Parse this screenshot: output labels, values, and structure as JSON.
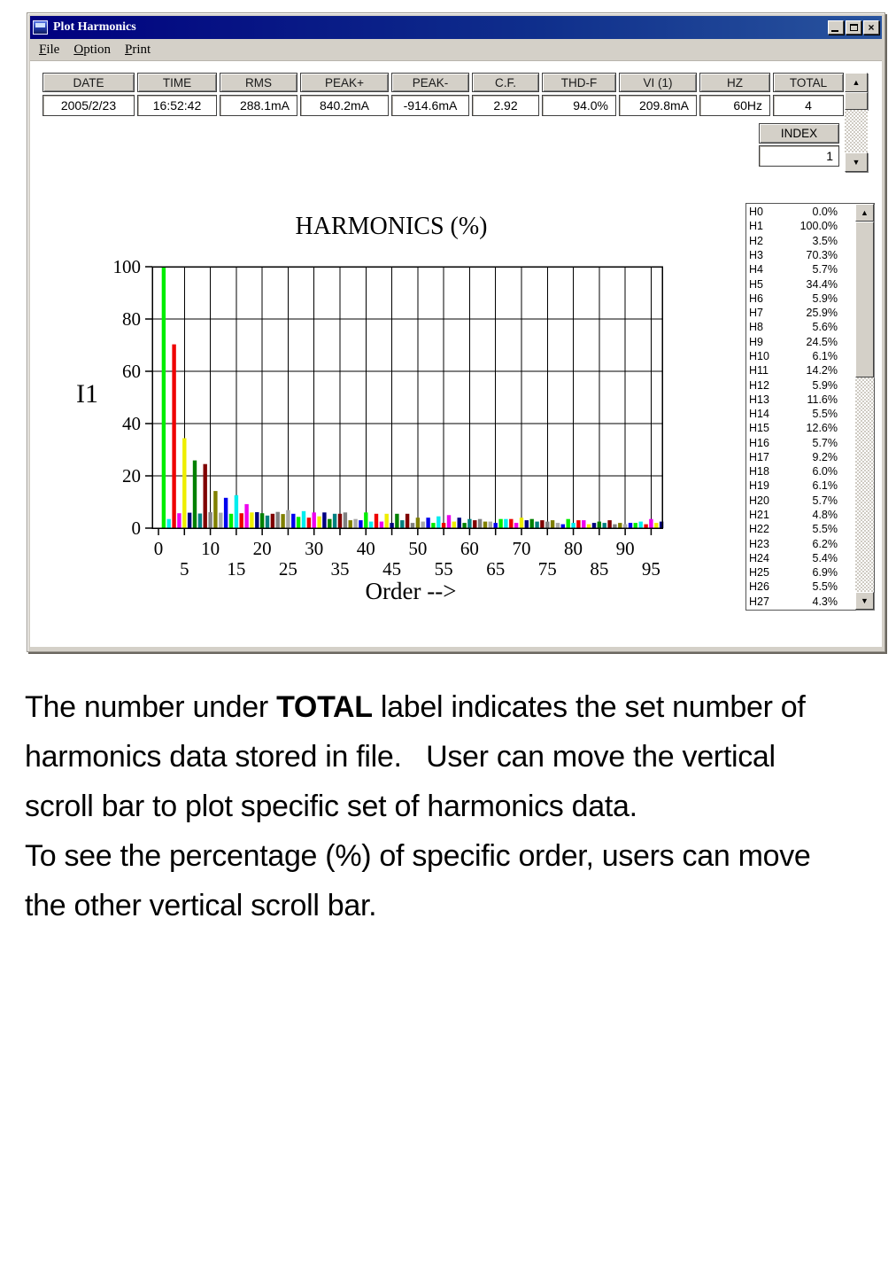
{
  "window": {
    "title": "Plot Harmonics",
    "menu": [
      {
        "hotkey": "F",
        "rest": "ile"
      },
      {
        "hotkey": "O",
        "rest": "ption"
      },
      {
        "hotkey": "P",
        "rest": "rint"
      }
    ]
  },
  "icons": {
    "close": "×",
    "scroll_up": "▲",
    "scroll_down": "▼"
  },
  "table": {
    "columns": [
      {
        "label": "DATE",
        "value": "2005/2/23"
      },
      {
        "label": "TIME",
        "value": "16:52:42"
      },
      {
        "label": "RMS",
        "value": "288.1mA"
      },
      {
        "label": "PEAK+",
        "value": "840.2mA"
      },
      {
        "label": "PEAK-",
        "value": "-914.6mA"
      },
      {
        "label": "C.F.",
        "value": "2.92"
      },
      {
        "label": "THD-F",
        "value": "94.0%"
      },
      {
        "label": "VI (1)",
        "value": "209.8mA"
      },
      {
        "label": "HZ",
        "value": "60Hz"
      },
      {
        "label": "TOTAL",
        "value": "4"
      }
    ]
  },
  "index_box": {
    "label": "INDEX",
    "value": "1"
  },
  "chart_data": {
    "type": "bar",
    "title": "HARMONICS (%)",
    "ylabel": "I1",
    "xlabel": "Order -->",
    "ylim": [
      0,
      100
    ],
    "xlim": [
      0,
      97
    ],
    "grid": true,
    "yticks": [
      0,
      20,
      40,
      60,
      80,
      100
    ],
    "xticks_major": [
      0,
      10,
      20,
      30,
      40,
      50,
      60,
      70,
      80,
      90
    ],
    "xticks_minor": [
      5,
      15,
      25,
      35,
      45,
      55,
      65,
      75,
      85,
      95
    ],
    "palette_cycle13": [
      "#00ee00",
      "#00eeee",
      "#ee0000",
      "#ee00ee",
      "#eeee00",
      "#000080",
      "#008000",
      "#008080",
      "#800000",
      "#808080",
      "#808000",
      "#a8a8a8",
      "#0000ee"
    ],
    "values": [
      0.0,
      100.0,
      3.5,
      70.3,
      5.7,
      34.4,
      5.9,
      25.9,
      5.6,
      24.5,
      6.1,
      14.2,
      5.9,
      11.6,
      5.5,
      12.6,
      5.7,
      9.2,
      6.0,
      6.1,
      5.7,
      4.8,
      5.5,
      6.2,
      5.4,
      6.9,
      5.5,
      4.3,
      6.5,
      4.0,
      6.0,
      4.5,
      6.0,
      3.5,
      5.5,
      5.5,
      6.0,
      3.0,
      3.5,
      3.0,
      6.0,
      2.5,
      5.5,
      2.5,
      5.5,
      2.0,
      5.5,
      3.0,
      5.5,
      2.0,
      4.0,
      2.5,
      4.0,
      2.0,
      4.5,
      2.0,
      5.0,
      2.5,
      4.0,
      2.0,
      3.5,
      3.0,
      3.5,
      2.5,
      2.5,
      2.0,
      3.5,
      3.5,
      3.5,
      2.0,
      4.0,
      3.0,
      3.5,
      2.5,
      3.0,
      2.5,
      3.0,
      2.0,
      1.5,
      3.5,
      2.0,
      3.0,
      3.0,
      1.5,
      2.0,
      2.5,
      2.0,
      3.0,
      1.5,
      2.0,
      1.5,
      2.0,
      2.0,
      2.5,
      1.5,
      3.5,
      2.0,
      2.5
    ]
  },
  "harmonics_list": {
    "items": [
      {
        "label": "H0",
        "value": "0.0%"
      },
      {
        "label": "H1",
        "value": "100.0%"
      },
      {
        "label": "H2",
        "value": "3.5%"
      },
      {
        "label": "H3",
        "value": "70.3%"
      },
      {
        "label": "H4",
        "value": "5.7%"
      },
      {
        "label": "H5",
        "value": "34.4%"
      },
      {
        "label": "H6",
        "value": "5.9%"
      },
      {
        "label": "H7",
        "value": "25.9%"
      },
      {
        "label": "H8",
        "value": "5.6%"
      },
      {
        "label": "H9",
        "value": "24.5%"
      },
      {
        "label": "H10",
        "value": "6.1%"
      },
      {
        "label": "H11",
        "value": "14.2%"
      },
      {
        "label": "H12",
        "value": "5.9%"
      },
      {
        "label": "H13",
        "value": "11.6%"
      },
      {
        "label": "H14",
        "value": "5.5%"
      },
      {
        "label": "H15",
        "value": "12.6%"
      },
      {
        "label": "H16",
        "value": "5.7%"
      },
      {
        "label": "H17",
        "value": "9.2%"
      },
      {
        "label": "H18",
        "value": "6.0%"
      },
      {
        "label": "H19",
        "value": "6.1%"
      },
      {
        "label": "H20",
        "value": "5.7%"
      },
      {
        "label": "H21",
        "value": "4.8%"
      },
      {
        "label": "H22",
        "value": "5.5%"
      },
      {
        "label": "H23",
        "value": "6.2%"
      },
      {
        "label": "H24",
        "value": "5.4%"
      },
      {
        "label": "H25",
        "value": "6.9%"
      },
      {
        "label": "H26",
        "value": "5.5%"
      },
      {
        "label": "H27",
        "value": "4.3%"
      }
    ]
  },
  "body_text": {
    "p1_line1_pre": "The number under ",
    "p1_line1_bold": "TOTAL",
    "p1_line1_post": " label indicates the set number of",
    "p1_line2": "harmonics data stored in file.   User can move the vertical",
    "p1_line3": "scroll bar to plot specific set of harmonics data.",
    "p2_line1": "To see the percentage (%) of specific order, users can move",
    "p2_line2": "the other vertical scroll bar."
  }
}
